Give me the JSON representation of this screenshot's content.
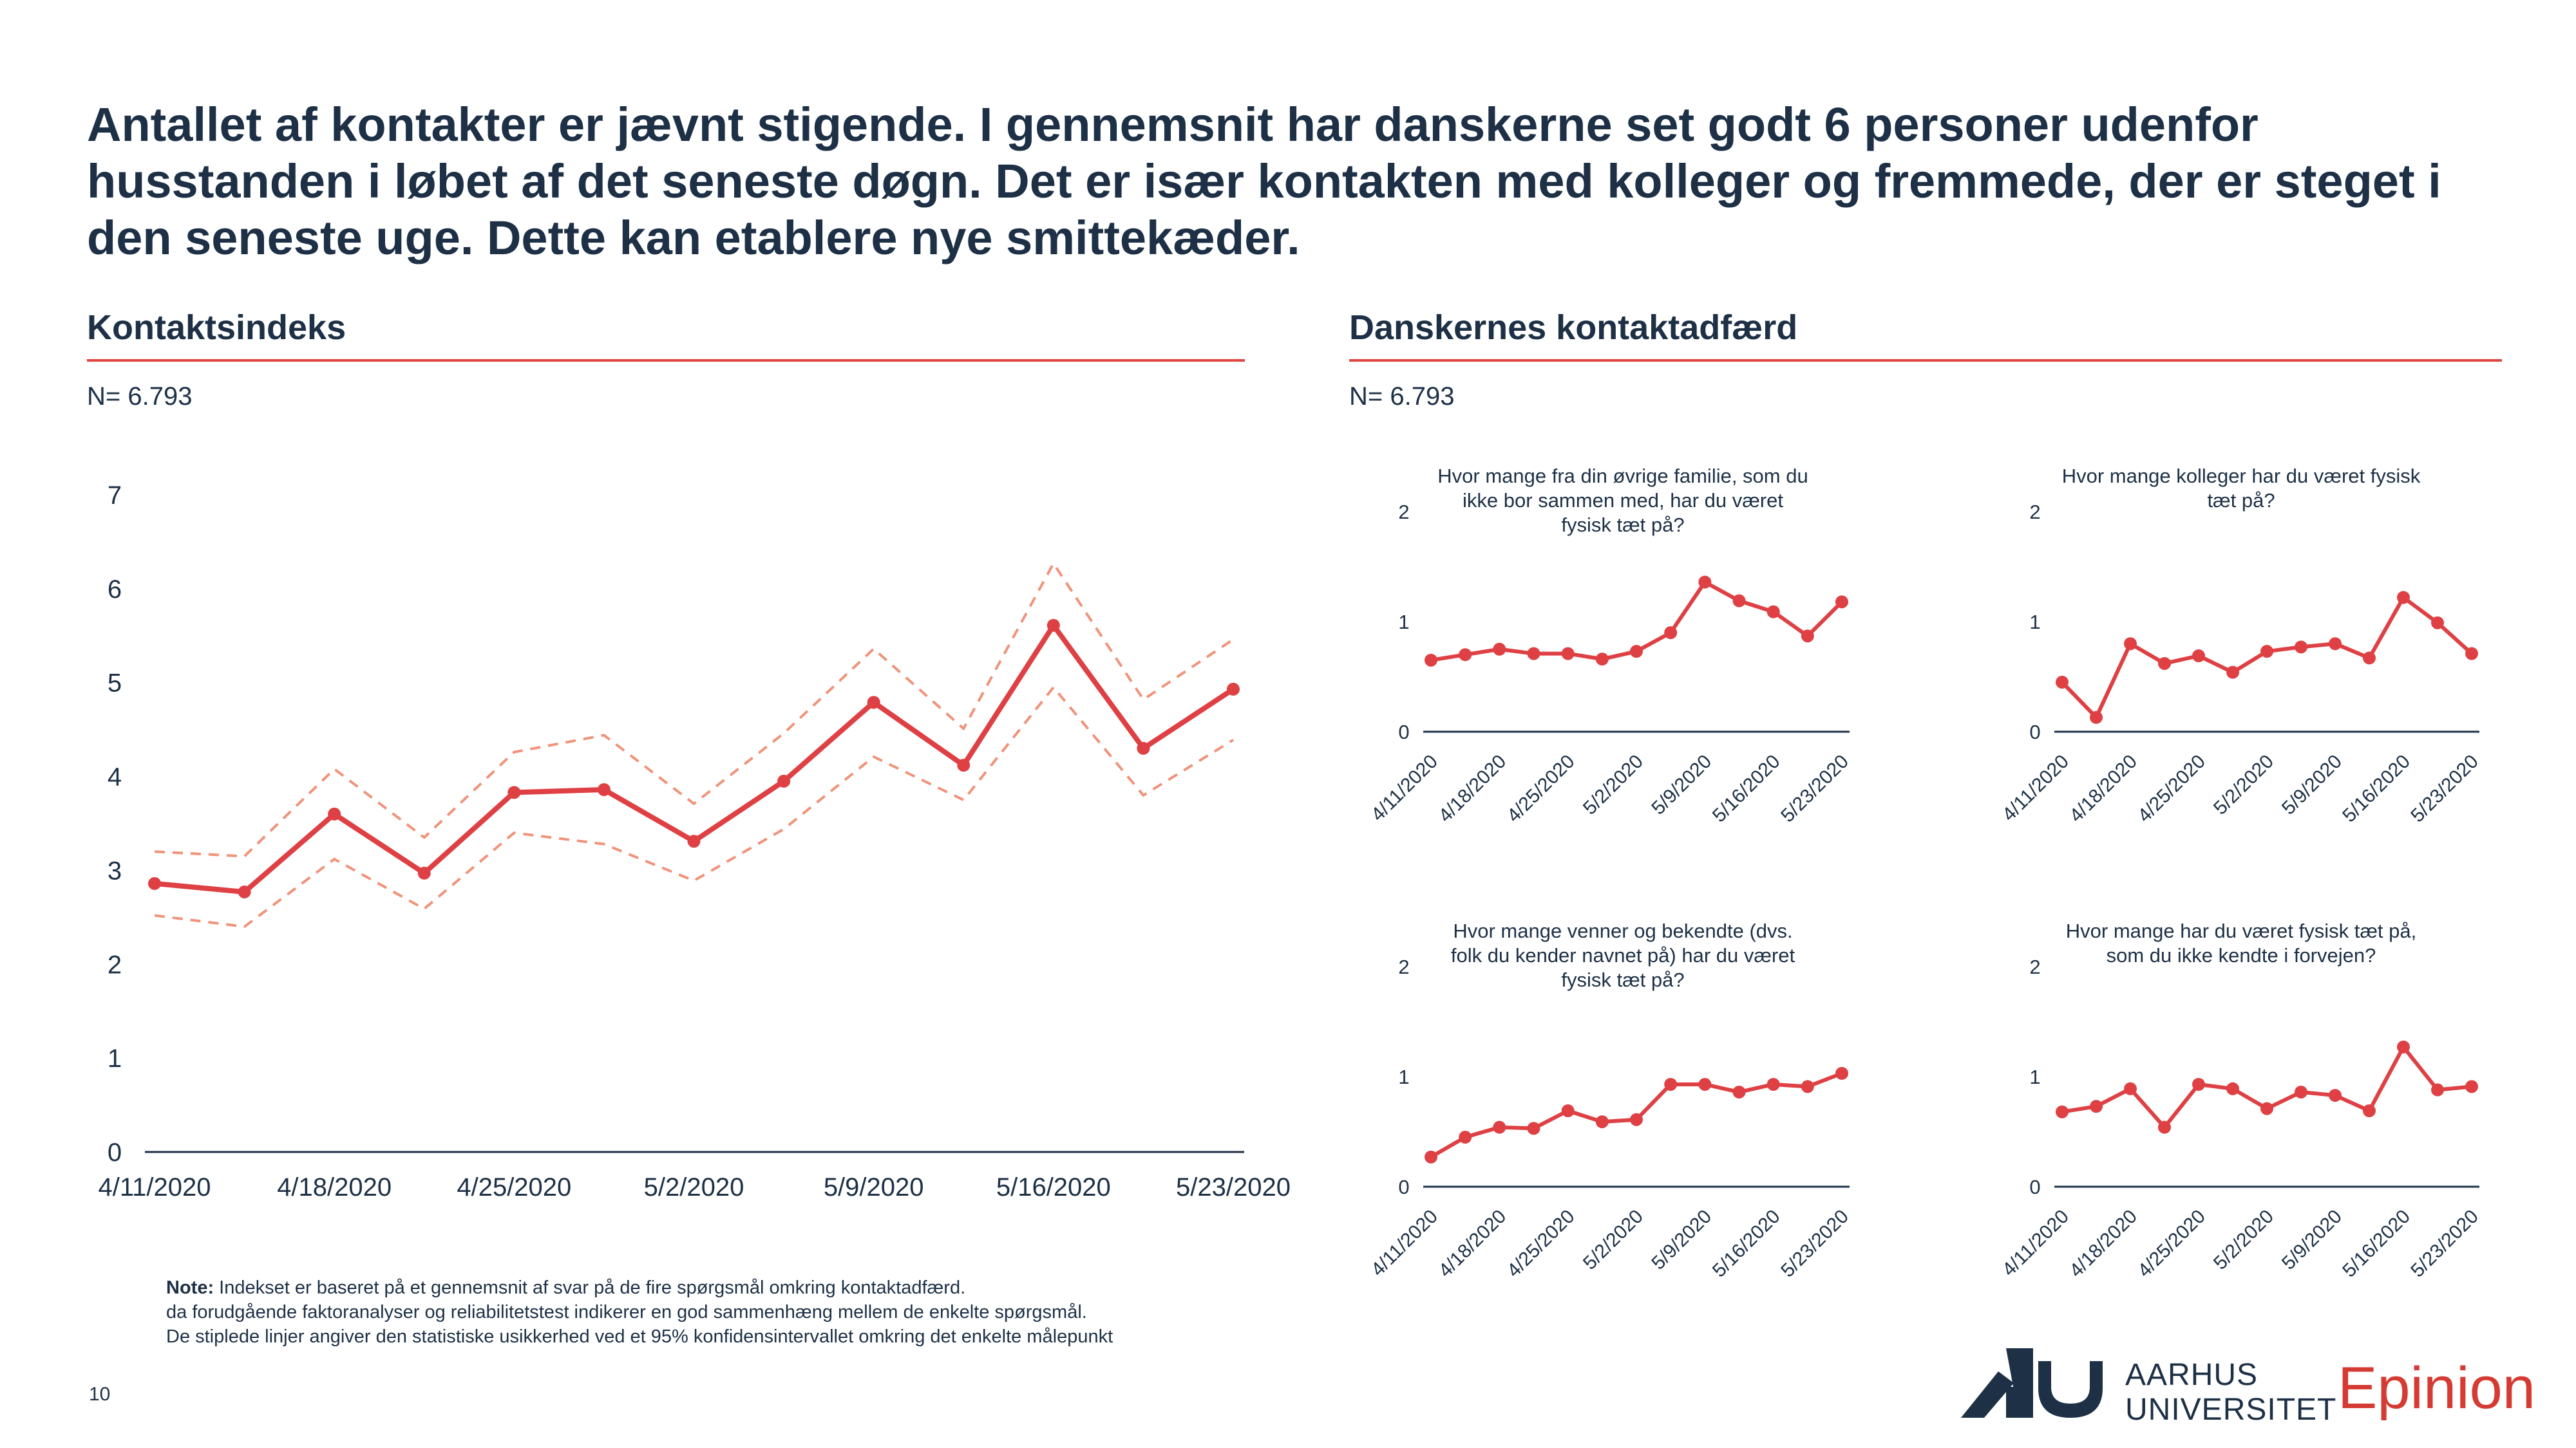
{
  "headline": "Antallet af kontakter er jævnt stigende. I gennemsnit har danskerne set godt 6 personer udenfor husstanden i løbet af det seneste døgn. Det er især kontakten med kolleger og fremmede, der er steget i den seneste uge. Dette kan etablere nye smittekæder.",
  "left_section": {
    "title": "Kontaktsindeks",
    "n_label": "N= 6.793"
  },
  "right_section": {
    "title": "Danskernes kontaktadfærd",
    "n_label": "N= 6.793"
  },
  "note": {
    "label": "Note:",
    "line1": " Indekset er baseret på et gennemsnit af svar på de fire spørgsmål omkring kontaktadfærd.",
    "line2": "da forudgående faktoranalyser og reliabilitetstest indikerer en god sammenhæng mellem de enkelte spørgsmål.",
    "line3": "De stiplede linjer angiver den statistiske usikkerhed ved et 95% konfidensintervallet omkring det enkelte målepunkt"
  },
  "page_number": "10",
  "logos": {
    "university_line1": "AARHUS",
    "university_line2": "UNIVERSITET",
    "epinion": "Epinion"
  },
  "colors": {
    "series": "#de4044",
    "ci": "#f0937a",
    "axis": "#1d3046",
    "rule": "#e0453f",
    "brand_red": "#d53a33",
    "au_blue": "#1d3046"
  },
  "chart_data": [
    {
      "type": "line",
      "title": "",
      "x_tick_labels": [
        "4/11/2020",
        "4/18/2020",
        "4/25/2020",
        "5/2/2020",
        "5/9/2020",
        "5/16/2020",
        "5/23/2020"
      ],
      "y_ticks": [
        0,
        1,
        2,
        3,
        4,
        5,
        6,
        7
      ],
      "ylim": [
        0,
        7
      ],
      "grid": false,
      "series": [
        {
          "values": [
            2.86,
            2.77,
            3.6,
            2.97,
            3.83,
            3.86,
            3.31,
            3.95,
            4.79,
            4.12,
            5.61,
            4.3,
            4.93
          ]
        },
        {
          "values": [
            3.2,
            3.15,
            4.08,
            3.35,
            4.26,
            4.44,
            3.71,
            4.46,
            5.36,
            4.51,
            6.27,
            4.82,
            5.46
          ]
        },
        {
          "values": [
            2.52,
            2.4,
            3.12,
            2.59,
            3.4,
            3.28,
            2.89,
            3.44,
            4.21,
            3.75,
            4.95,
            3.8,
            4.39
          ]
        }
      ]
    },
    {
      "type": "line",
      "title": "Hvor mange fra din øvrige familie, som du ikke bor sammen med, har du været fysisk tæt på?",
      "title_lines": [
        "Hvor mange fra din øvrige familie, som du",
        "ikke bor sammen med, har du været",
        "fysisk tæt på?"
      ],
      "x_tick_labels": [
        "4/11/2020",
        "4/18/2020",
        "4/25/2020",
        "5/2/2020",
        "5/9/2020",
        "5/16/2020",
        "5/23/2020"
      ],
      "y_ticks": [
        0,
        1,
        2
      ],
      "ylim": [
        0,
        2
      ],
      "series": [
        {
          "values": [
            0.65,
            0.7,
            0.75,
            0.71,
            0.71,
            0.66,
            0.73,
            0.9,
            1.36,
            1.19,
            1.09,
            0.87,
            1.18
          ]
        }
      ]
    },
    {
      "type": "line",
      "title": "Hvor mange kolleger har du været fysisk tæt på?",
      "title_lines": [
        "Hvor mange kolleger har du været fysisk",
        "tæt på?"
      ],
      "x_tick_labels": [
        "4/11/2020",
        "4/18/2020",
        "4/25/2020",
        "5/2/2020",
        "5/9/2020",
        "5/16/2020",
        "5/23/2020"
      ],
      "y_ticks": [
        0,
        1,
        2
      ],
      "ylim": [
        0,
        2
      ],
      "series": [
        {
          "values": [
            0.45,
            0.13,
            0.8,
            0.62,
            0.69,
            0.54,
            0.73,
            0.77,
            0.8,
            0.67,
            1.22,
            0.99,
            0.71
          ]
        }
      ]
    },
    {
      "type": "line",
      "title": "Hvor mange venner og bekendte (dvs. folk du kender navnet på) har du været fysisk tæt på?",
      "title_lines": [
        "Hvor mange venner og bekendte (dvs.",
        "folk du kender navnet på) har du været",
        "fysisk tæt på?"
      ],
      "x_tick_labels": [
        "4/11/2020",
        "4/18/2020",
        "4/25/2020",
        "5/2/2020",
        "5/9/2020",
        "5/16/2020",
        "5/23/2020"
      ],
      "y_ticks": [
        0,
        1,
        2
      ],
      "ylim": [
        0,
        2
      ],
      "series": [
        {
          "values": [
            0.27,
            0.45,
            0.54,
            0.53,
            0.69,
            0.59,
            0.61,
            0.93,
            0.93,
            0.86,
            0.93,
            0.91,
            1.03
          ]
        }
      ]
    },
    {
      "type": "line",
      "title": "Hvor mange har du været fysisk tæt på, som du ikke kendte i forvejen?",
      "title_lines": [
        "Hvor mange har du været fysisk tæt på,",
        "som du ikke kendte i forvejen?"
      ],
      "x_tick_labels": [
        "4/11/2020",
        "4/18/2020",
        "4/25/2020",
        "5/2/2020",
        "5/9/2020",
        "5/16/2020",
        "5/23/2020"
      ],
      "y_ticks": [
        0,
        1,
        2
      ],
      "ylim": [
        0,
        2
      ],
      "series": [
        {
          "values": [
            0.68,
            0.73,
            0.89,
            0.54,
            0.93,
            0.89,
            0.71,
            0.86,
            0.83,
            0.69,
            1.27,
            0.88,
            0.91
          ]
        }
      ]
    }
  ]
}
